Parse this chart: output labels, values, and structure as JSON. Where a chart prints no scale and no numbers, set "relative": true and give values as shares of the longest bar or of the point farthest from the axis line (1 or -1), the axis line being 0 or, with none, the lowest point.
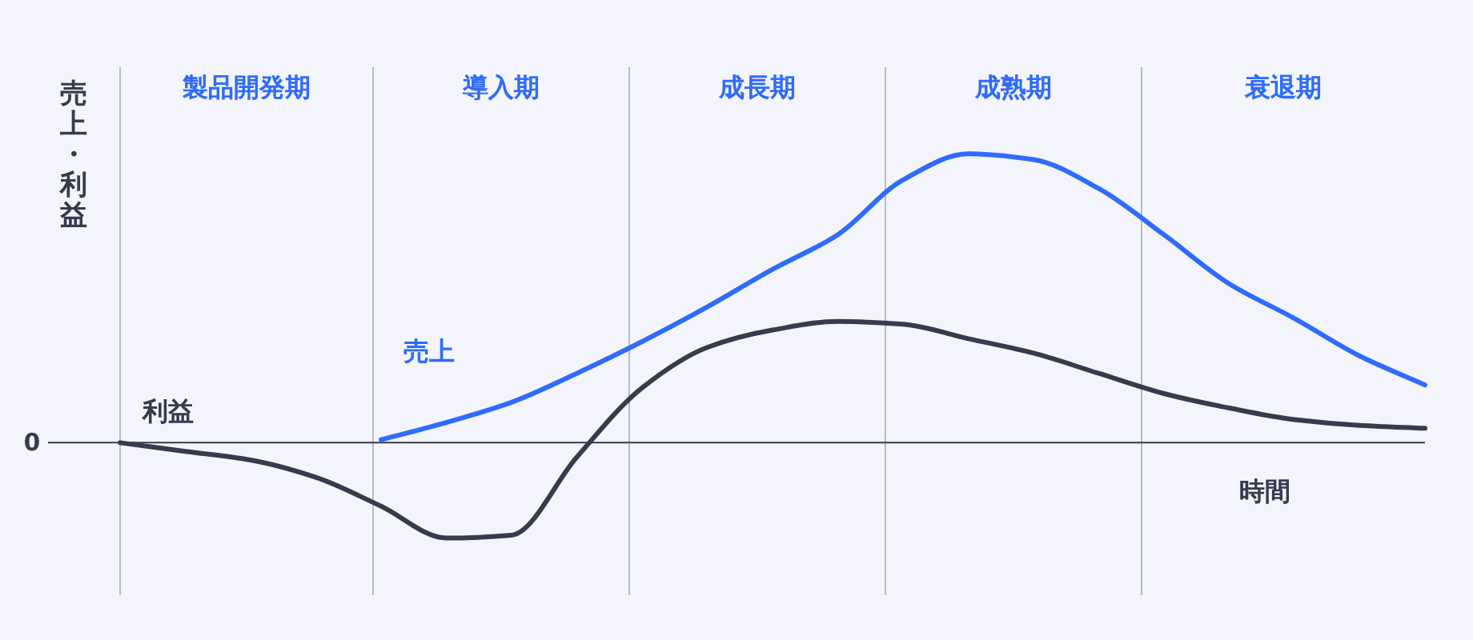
{
  "chart_data": {
    "type": "line",
    "relative": true,
    "ylabel": "売上・利益",
    "xlabel": "時間",
    "categories": [
      null,
      null,
      null,
      null,
      null,
      null,
      null,
      null,
      null,
      null,
      null,
      null,
      null,
      null,
      null,
      null,
      null,
      null,
      null,
      null,
      null
    ],
    "annotations": [
      "0",
      "製品開発期",
      "導入期",
      "成長期",
      "成熟期",
      "衰退期"
    ],
    "series": [
      {
        "name": "売上",
        "color": "#2f6bff",
        "values": [
          null,
          null,
          null,
          null,
          0.01,
          0.07,
          0.14,
          0.24,
          0.35,
          0.47,
          0.6,
          0.72,
          0.91,
          1.0,
          0.98,
          0.88,
          0.72,
          0.55,
          0.43,
          0.3,
          0.2
        ]
      },
      {
        "name": "利益",
        "color": "#3a3a4f",
        "values": [
          0,
          -0.03,
          -0.06,
          -0.12,
          -0.22,
          -0.33,
          -0.32,
          -0.05,
          0.19,
          0.33,
          0.39,
          0.42,
          0.41,
          0.36,
          0.31,
          0.24,
          0.17,
          0.12,
          0.08,
          0.06,
          0.05
        ]
      }
    ]
  }
}
